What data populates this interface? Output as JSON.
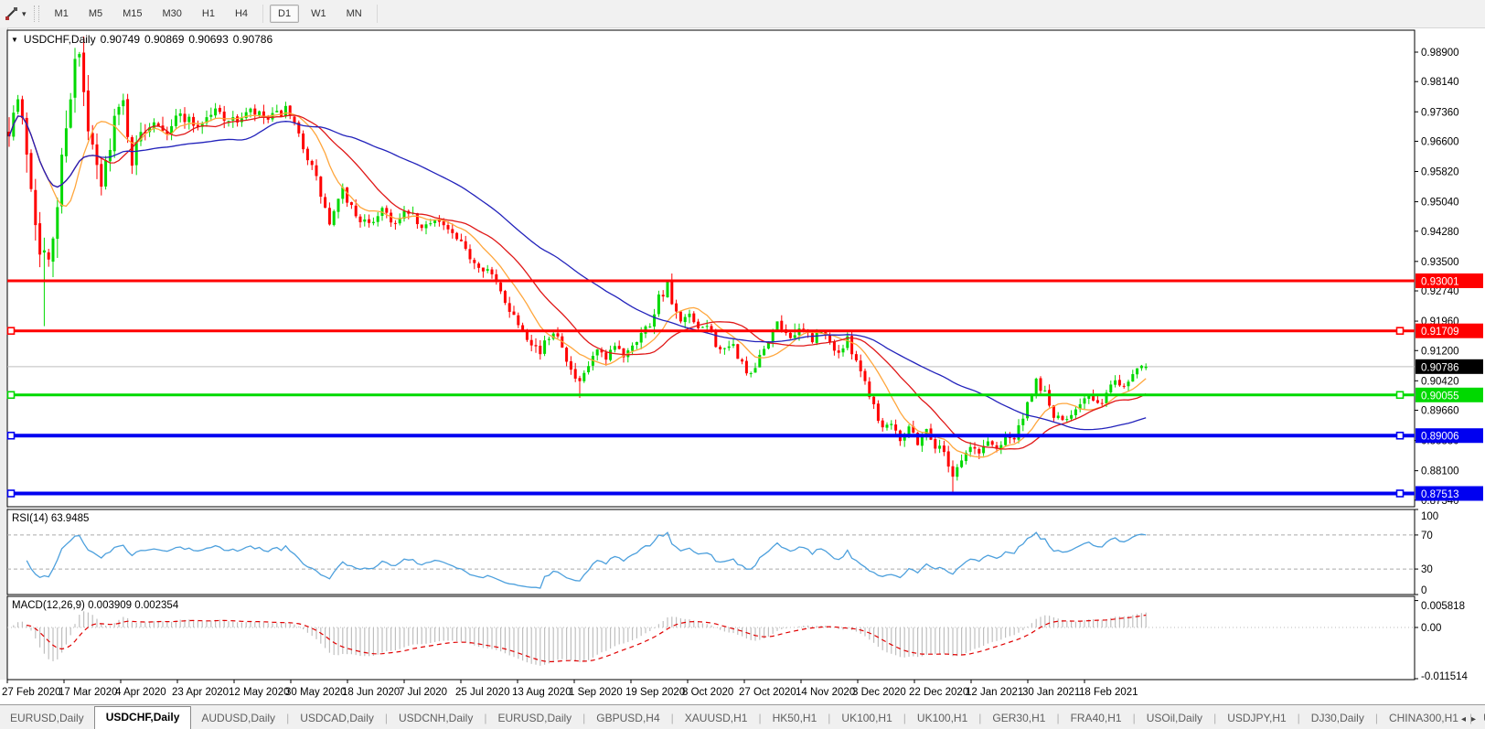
{
  "toolbar": {
    "cursor_tool": "chart-drawing-cursor",
    "dropdown_caret": "▾",
    "timeframes": [
      {
        "label": "M1",
        "active": false
      },
      {
        "label": "M5",
        "active": false
      },
      {
        "label": "M15",
        "active": false
      },
      {
        "label": "M30",
        "active": false
      },
      {
        "label": "H1",
        "active": false
      },
      {
        "label": "H4",
        "active": false
      },
      {
        "label": "D1",
        "active": true
      },
      {
        "label": "W1",
        "active": false
      },
      {
        "label": "MN",
        "active": false
      }
    ]
  },
  "chart": {
    "title": {
      "dropdown_glyph": "▼",
      "symbol": "USDCHF,Daily",
      "open": "0.90749",
      "high": "0.90869",
      "low": "0.90693",
      "close": "0.90786"
    }
  },
  "price_axis": {
    "ticks": [
      "0.98900",
      "0.98140",
      "0.97360",
      "0.96600",
      "0.95820",
      "0.95040",
      "0.94280",
      "0.93500",
      "0.92740",
      "0.91960",
      "0.91200",
      "0.90420",
      "0.89660",
      "0.88880",
      "0.88100",
      "0.87340"
    ]
  },
  "hlines": [
    {
      "price": 0.93001,
      "label": "0.93001",
      "color": "#ff0000",
      "width": 3,
      "handles": false
    },
    {
      "price": 0.91709,
      "label": "0.91709",
      "color": "#ff0000",
      "width": 3,
      "handles": true
    },
    {
      "price": 0.90055,
      "label": "0.90055",
      "color": "#00d900",
      "width": 3,
      "handles": true
    },
    {
      "price": 0.89006,
      "label": "0.89006",
      "color": "#0000f0",
      "width": 4,
      "handles": true
    },
    {
      "price": 0.87513,
      "label": "0.87513",
      "color": "#0000f0",
      "width": 4,
      "handles": true
    }
  ],
  "current_price": {
    "value": 0.90786,
    "label": "0.90786",
    "line_color": "#bdbdbd",
    "label_bg": "#000000"
  },
  "rsi_panel": {
    "label": "RSI(14) 63.9485",
    "axis_ticks": [
      "100",
      "70",
      "30",
      "0"
    ],
    "axis_values": [
      100,
      70,
      30,
      0
    ],
    "dashed_levels": [
      70,
      30
    ],
    "line_color": "#4da0dd"
  },
  "macd_panel": {
    "label": "MACD(12,26,9) 0.003909 0.002354",
    "axis_ticks": [
      "0.005818",
      "0.00",
      "-0.011514"
    ],
    "axis_values": [
      0.005818,
      0,
      -0.011514
    ],
    "histogram_color": "#bfbfbf",
    "signal_color": "#e00000"
  },
  "date_axis": [
    "27 Feb 2020",
    "17 Mar 2020",
    "4 Apr 2020",
    "23 Apr 2020",
    "12 May 2020",
    "30 May 2020",
    "18 Jun 2020",
    "7 Jul 2020",
    "25 Jul 2020",
    "13 Aug 2020",
    "1 Sep 2020",
    "19 Sep 2020",
    "8 Oct 2020",
    "27 Oct 2020",
    "14 Nov 2020",
    "3 Dec 2020",
    "22 Dec 2020",
    "12 Jan 2021",
    "30 Jan 2021",
    "18 Feb 2021"
  ],
  "tab_bar": {
    "tabs": [
      {
        "label": "EURUSD,Daily",
        "active": false
      },
      {
        "label": "USDCHF,Daily",
        "active": true
      },
      {
        "label": "AUDUSD,Daily",
        "active": false
      },
      {
        "label": "USDCAD,Daily",
        "active": false
      },
      {
        "label": "USDCNH,Daily",
        "active": false
      },
      {
        "label": "EURUSD,Daily",
        "active": false
      },
      {
        "label": "GBPUSD,H4",
        "active": false
      },
      {
        "label": "XAUUSD,H1",
        "active": false
      },
      {
        "label": "HK50,H1",
        "active": false
      },
      {
        "label": "UK100,H1",
        "active": false
      },
      {
        "label": "UK100,H1",
        "active": false
      },
      {
        "label": "GER30,H1",
        "active": false
      },
      {
        "label": "FRA40,H1",
        "active": false
      },
      {
        "label": "USOil,Daily",
        "active": false
      },
      {
        "label": "USDJPY,H1",
        "active": false
      },
      {
        "label": "DJ30,Daily",
        "active": false
      },
      {
        "label": "CHINA300,H1",
        "active": false
      },
      {
        "label": "USOil,",
        "active": false
      }
    ],
    "arrow_left": "◂",
    "arrow_right": "▸"
  },
  "chart_data": {
    "type": "candlestick",
    "symbol": "USDCHF",
    "timeframe": "Daily",
    "current_ohlc": {
      "open": 0.90749,
      "high": 0.90869,
      "low": 0.90693,
      "close": 0.90786
    },
    "count": 260,
    "seed": 7,
    "candle_up_color": "#00d900",
    "candle_down_color": "#ff0000",
    "anchors": [
      [
        0,
        0.97
      ],
      [
        2,
        0.9765
      ],
      [
        4,
        0.964
      ],
      [
        6,
        0.947
      ],
      [
        7,
        0.94
      ],
      [
        9,
        0.933
      ],
      [
        11,
        0.95
      ],
      [
        13,
        0.972
      ],
      [
        15,
        0.986
      ],
      [
        16,
        0.9875
      ],
      [
        18,
        0.968
      ],
      [
        21,
        0.954
      ],
      [
        24,
        0.972
      ],
      [
        26,
        0.976
      ],
      [
        28,
        0.961
      ],
      [
        30,
        0.968
      ],
      [
        33,
        0.972
      ],
      [
        36,
        0.969
      ],
      [
        39,
        0.973
      ],
      [
        43,
        0.97
      ],
      [
        47,
        0.974
      ],
      [
        51,
        0.971
      ],
      [
        55,
        0.9735
      ],
      [
        59,
        0.9715
      ],
      [
        63,
        0.974
      ],
      [
        67,
        0.965
      ],
      [
        70,
        0.956
      ],
      [
        73,
        0.9445
      ],
      [
        76,
        0.953
      ],
      [
        79,
        0.947
      ],
      [
        82,
        0.944
      ],
      [
        85,
        0.949
      ],
      [
        88,
        0.9445
      ],
      [
        91,
        0.948
      ],
      [
        94,
        0.943
      ],
      [
        97,
        0.9465
      ],
      [
        100,
        0.943
      ],
      [
        103,
        0.939
      ],
      [
        106,
        0.935
      ],
      [
        109,
        0.933
      ],
      [
        112,
        0.927
      ],
      [
        115,
        0.921
      ],
      [
        118,
        0.916
      ],
      [
        121,
        0.9115
      ],
      [
        124,
        0.9175
      ],
      [
        126,
        0.914
      ],
      [
        128,
        0.9065
      ],
      [
        130,
        0.903
      ],
      [
        132,
        0.908
      ],
      [
        134,
        0.912
      ],
      [
        136,
        0.909
      ],
      [
        138,
        0.913
      ],
      [
        140,
        0.911
      ],
      [
        142,
        0.914
      ],
      [
        144,
        0.9165
      ],
      [
        146,
        0.919
      ],
      [
        148,
        0.926
      ],
      [
        150,
        0.9285
      ],
      [
        151,
        0.924
      ],
      [
        153,
        0.9185
      ],
      [
        155,
        0.921
      ],
      [
        157,
        0.9165
      ],
      [
        159,
        0.919
      ],
      [
        161,
        0.914
      ],
      [
        163,
        0.9115
      ],
      [
        165,
        0.913
      ],
      [
        167,
        0.9085
      ],
      [
        169,
        0.905
      ],
      [
        171,
        0.91
      ],
      [
        173,
        0.915
      ],
      [
        175,
        0.9185
      ],
      [
        177,
        0.9165
      ],
      [
        179,
        0.916
      ],
      [
        181,
        0.917
      ],
      [
        183,
        0.915
      ],
      [
        185,
        0.9168
      ],
      [
        187,
        0.914
      ],
      [
        189,
        0.9115
      ],
      [
        191,
        0.9145
      ],
      [
        193,
        0.91
      ],
      [
        195,
        0.904
      ],
      [
        197,
        0.898
      ],
      [
        199,
        0.892
      ],
      [
        201,
        0.894
      ],
      [
        203,
        0.8895
      ],
      [
        205,
        0.8925
      ],
      [
        207,
        0.8885
      ],
      [
        209,
        0.8915
      ],
      [
        211,
        0.8875
      ],
      [
        213,
        0.886
      ],
      [
        215,
        0.88
      ],
      [
        217,
        0.884
      ],
      [
        219,
        0.887
      ],
      [
        221,
        0.8855
      ],
      [
        223,
        0.889
      ],
      [
        225,
        0.8865
      ],
      [
        227,
        0.8905
      ],
      [
        229,
        0.889
      ],
      [
        231,
        0.895
      ],
      [
        233,
        0.9
      ],
      [
        234,
        0.904
      ],
      [
        236,
        0.901
      ],
      [
        238,
        0.895
      ],
      [
        240,
        0.8935
      ],
      [
        242,
        0.896
      ],
      [
        244,
        0.899
      ],
      [
        246,
        0.9
      ],
      [
        248,
        0.8975
      ],
      [
        250,
        0.901
      ],
      [
        252,
        0.9045
      ],
      [
        254,
        0.903
      ],
      [
        256,
        0.906
      ],
      [
        258,
        0.9088
      ],
      [
        259,
        0.90786
      ]
    ],
    "volatility": [
      [
        0,
        0.007
      ],
      [
        6,
        0.0095
      ],
      [
        12,
        0.0095
      ],
      [
        18,
        0.0075
      ],
      [
        25,
        0.005
      ],
      [
        40,
        0.0038
      ],
      [
        60,
        0.0034
      ],
      [
        80,
        0.0032
      ],
      [
        100,
        0.003
      ],
      [
        120,
        0.0032
      ],
      [
        140,
        0.003
      ],
      [
        150,
        0.004
      ],
      [
        165,
        0.003
      ],
      [
        190,
        0.003
      ],
      [
        215,
        0.003
      ],
      [
        235,
        0.003
      ],
      [
        250,
        0.0026
      ],
      [
        259,
        0.002
      ]
    ],
    "overrides": {
      "8": {
        "l": 0.9183
      },
      "15": {
        "h": 0.9901
      },
      "130": {
        "l": 0.8998
      },
      "150": {
        "h": 0.9295
      },
      "179": {
        "h": 0.919
      },
      "215": {
        "l": 0.87513
      },
      "259": {
        "o": 0.90749,
        "h": 0.90869,
        "l": 0.90693,
        "c": 0.90786
      }
    },
    "moving_averages": [
      {
        "period": 10,
        "color": "#ffa63c"
      },
      {
        "period": 21,
        "color": "#e01818"
      },
      {
        "period": 50,
        "color": "#2222bb"
      }
    ],
    "rsi": {
      "period": 14,
      "current_value": 63.9485,
      "overbought": 70,
      "oversold": 30
    },
    "macd": {
      "fast": 12,
      "slow": 26,
      "signal": 9,
      "current_value": 0.003909,
      "current_signal": 0.002354
    },
    "horizontal_levels": [
      0.93001,
      0.91709,
      0.90055,
      0.89006,
      0.87513
    ],
    "price_axis_range": [
      0.8734,
      0.989
    ],
    "rsi_axis_range": [
      0,
      100
    ],
    "macd_axis_range": [
      -0.011514,
      0.005818
    ]
  }
}
